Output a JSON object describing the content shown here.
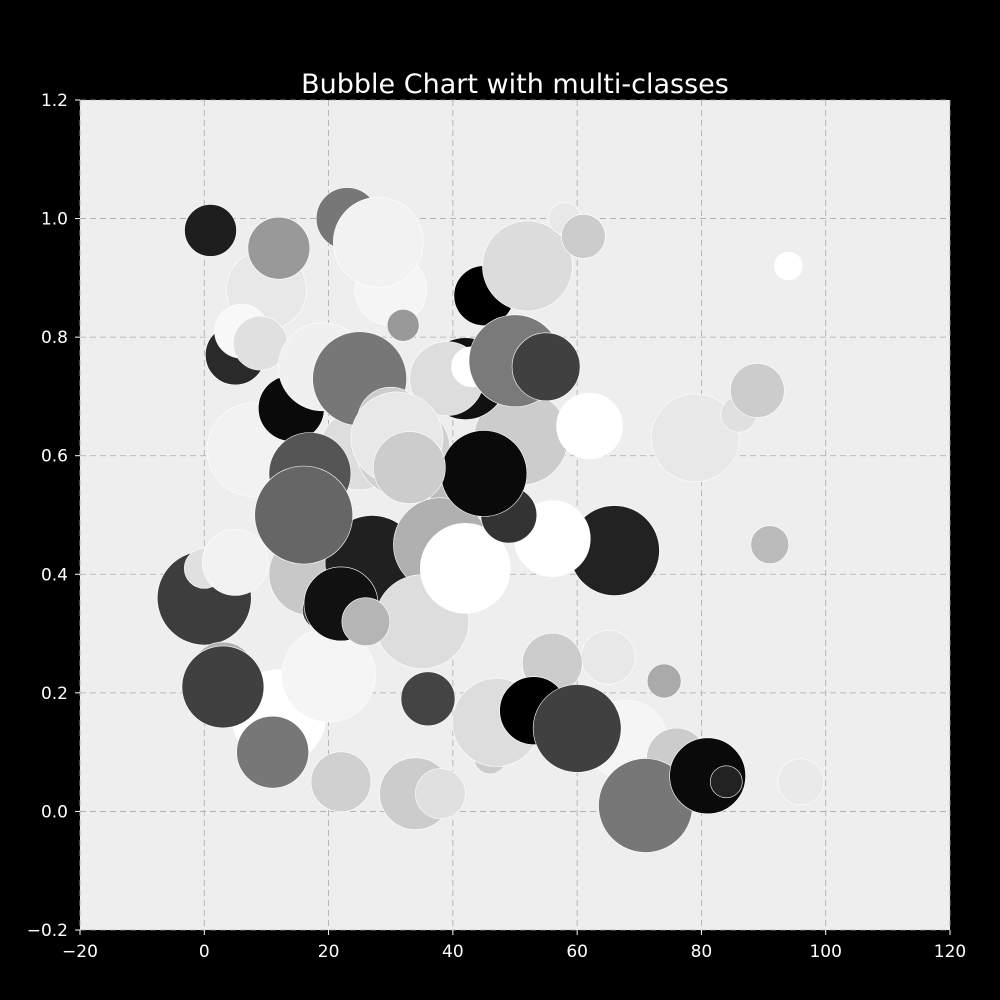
{
  "chart_data": {
    "type": "scatter",
    "title": "Bubble Chart with multi-classes",
    "xlabel": "",
    "ylabel": "",
    "xlim": [
      -20,
      120
    ],
    "ylim": [
      -0.2,
      1.2
    ],
    "x_ticks": [
      "−20",
      "0",
      "20",
      "40",
      "60",
      "80",
      "100",
      "120"
    ],
    "y_ticks": [
      "−0.2",
      "0.0",
      "0.2",
      "0.4",
      "0.6",
      "0.8",
      "1.0",
      "1.2"
    ],
    "grid": true,
    "legend": "none",
    "colors": {
      "figure_background": "#000000",
      "plot_background": "#eeeeee",
      "grid": "#aaaaaa",
      "text": "#ffffff"
    },
    "points": [
      {
        "x": 17,
        "y": 0.4,
        "size": 41,
        "color": "#c8c8c8"
      },
      {
        "x": 0,
        "y": 0.36,
        "size": 47,
        "color": "#3d3d3d"
      },
      {
        "x": 0,
        "y": 0.41,
        "size": 20,
        "color": "#e0e0e0"
      },
      {
        "x": 5,
        "y": 0.42,
        "size": 33,
        "color": "#f2f2f2"
      },
      {
        "x": 27,
        "y": 0.42,
        "size": 47,
        "color": "#202020"
      },
      {
        "x": 25,
        "y": 0.61,
        "size": 40,
        "color": "#dddddd"
      },
      {
        "x": 8,
        "y": 0.61,
        "size": 47,
        "color": "#f2f2f2"
      },
      {
        "x": 10,
        "y": 0.88,
        "size": 40,
        "color": "#e8e8e8"
      },
      {
        "x": 41,
        "y": 0.54,
        "size": 30,
        "color": "#bbbbbb"
      },
      {
        "x": 38,
        "y": 0.45,
        "size": 47,
        "color": "#b0b0b0"
      },
      {
        "x": 32,
        "y": 0.61,
        "size": 47,
        "color": "#d0d0d0"
      },
      {
        "x": 51,
        "y": 0.63,
        "size": 47,
        "color": "#cccccc"
      },
      {
        "x": 79,
        "y": 0.63,
        "size": 44,
        "color": "#e8e8e8"
      },
      {
        "x": 86,
        "y": 0.67,
        "size": 18,
        "color": "#e0e0e0"
      },
      {
        "x": 65,
        "y": 0.26,
        "size": 27,
        "color": "#e8e8e8"
      },
      {
        "x": 56,
        "y": 0.25,
        "size": 30,
        "color": "#cccccc"
      },
      {
        "x": 12,
        "y": 0.16,
        "size": 47,
        "color": "#ffffff"
      },
      {
        "x": 3,
        "y": 0.23,
        "size": 33,
        "color": "#b0b0b0"
      },
      {
        "x": 20,
        "y": 0.28,
        "size": 20,
        "color": "#888888"
      },
      {
        "x": 19,
        "y": 0.34,
        "size": 20,
        "color": "#404040"
      },
      {
        "x": 35,
        "y": 0.32,
        "size": 47,
        "color": "#dddddd"
      },
      {
        "x": 20,
        "y": 0.23,
        "size": 47,
        "color": "#f5f5f5"
      },
      {
        "x": 3,
        "y": 0.21,
        "size": 41,
        "color": "#404040"
      },
      {
        "x": 11,
        "y": 0.1,
        "size": 36,
        "color": "#777777"
      },
      {
        "x": 22,
        "y": 0.05,
        "size": 30,
        "color": "#d0d0d0"
      },
      {
        "x": 34,
        "y": 0.03,
        "size": 36,
        "color": "#cccccc"
      },
      {
        "x": 38,
        "y": 0.03,
        "size": 25,
        "color": "#e0e0e0"
      },
      {
        "x": 36,
        "y": 0.19,
        "size": 27,
        "color": "#444444"
      },
      {
        "x": 46,
        "y": 0.09,
        "size": 16,
        "color": "#cccccc"
      },
      {
        "x": 47,
        "y": 0.15,
        "size": 44,
        "color": "#dddddd"
      },
      {
        "x": 53,
        "y": 0.17,
        "size": 34,
        "color": "#000000"
      },
      {
        "x": 68,
        "y": 0.12,
        "size": 40,
        "color": "#f5f5f5"
      },
      {
        "x": 76,
        "y": 0.09,
        "size": 30,
        "color": "#cccccc"
      },
      {
        "x": 71,
        "y": 0.01,
        "size": 47,
        "color": "#777777"
      },
      {
        "x": 81,
        "y": 0.06,
        "size": 38,
        "color": "#0a0a0a"
      },
      {
        "x": 84,
        "y": 0.05,
        "size": 16,
        "color": "#222222"
      },
      {
        "x": 96,
        "y": 0.05,
        "size": 23,
        "color": "#eaeaea"
      },
      {
        "x": 74,
        "y": 0.22,
        "size": 17,
        "color": "#aaaaaa"
      },
      {
        "x": 60,
        "y": 0.14,
        "size": 44,
        "color": "#404040"
      },
      {
        "x": 91,
        "y": 0.45,
        "size": 19,
        "color": "#bbbbbb"
      },
      {
        "x": 89,
        "y": 0.71,
        "size": 27,
        "color": "#cccccc"
      },
      {
        "x": 94,
        "y": 0.92,
        "size": 14,
        "color": "#ffffff"
      },
      {
        "x": 62,
        "y": 0.65,
        "size": 33,
        "color": "#ffffff"
      },
      {
        "x": 66,
        "y": 0.44,
        "size": 45,
        "color": "#222222"
      },
      {
        "x": 56,
        "y": 0.46,
        "size": 38,
        "color": "#ffffff"
      },
      {
        "x": 42,
        "y": 0.41,
        "size": 45,
        "color": "#ffffff"
      },
      {
        "x": 49,
        "y": 0.5,
        "size": 28,
        "color": "#333333"
      },
      {
        "x": 45,
        "y": 0.57,
        "size": 43,
        "color": "#0a0a0a"
      },
      {
        "x": 42,
        "y": 0.73,
        "size": 41,
        "color": "#111111"
      },
      {
        "x": 39,
        "y": 0.73,
        "size": 37,
        "color": "#dddddd"
      },
      {
        "x": 43,
        "y": 0.75,
        "size": 20,
        "color": "#ffffff"
      },
      {
        "x": 45,
        "y": 0.87,
        "size": 30,
        "color": "#000000"
      },
      {
        "x": 50,
        "y": 0.76,
        "size": 46,
        "color": "#7a7a7a"
      },
      {
        "x": 55,
        "y": 0.75,
        "size": 34,
        "color": "#404040"
      },
      {
        "x": 52,
        "y": 0.92,
        "size": 45,
        "color": "#dcdcdc"
      },
      {
        "x": 58,
        "y": 1.0,
        "size": 16,
        "color": "#e8e8e8"
      },
      {
        "x": 61,
        "y": 0.97,
        "size": 22,
        "color": "#cccccc"
      },
      {
        "x": 23,
        "y": 1.0,
        "size": 31,
        "color": "#777777"
      },
      {
        "x": 30,
        "y": 0.88,
        "size": 36,
        "color": "#f5f5f5"
      },
      {
        "x": 28,
        "y": 0.96,
        "size": 45,
        "color": "#f2f2f2"
      },
      {
        "x": 12,
        "y": 0.95,
        "size": 31,
        "color": "#999999"
      },
      {
        "x": 1,
        "y": 0.98,
        "size": 26,
        "color": "#1e1e1e"
      },
      {
        "x": 32,
        "y": 0.82,
        "size": 16,
        "color": "#999999"
      },
      {
        "x": 5,
        "y": 0.77,
        "size": 30,
        "color": "#2a2a2a"
      },
      {
        "x": 6,
        "y": 0.81,
        "size": 27,
        "color": "#f8f8f8"
      },
      {
        "x": 9,
        "y": 0.79,
        "size": 27,
        "color": "#e0e0e0"
      },
      {
        "x": 14,
        "y": 0.68,
        "size": 33,
        "color": "#0a0a0a"
      },
      {
        "x": 19,
        "y": 0.75,
        "size": 44,
        "color": "#f0f0f0"
      },
      {
        "x": 25,
        "y": 0.73,
        "size": 47,
        "color": "#777777"
      },
      {
        "x": 30,
        "y": 0.66,
        "size": 33,
        "color": "#cccccc"
      },
      {
        "x": 31,
        "y": 0.63,
        "size": 46,
        "color": "#e8e8e8"
      },
      {
        "x": 33,
        "y": 0.58,
        "size": 36,
        "color": "#cccccc"
      },
      {
        "x": 17,
        "y": 0.57,
        "size": 41,
        "color": "#555555"
      },
      {
        "x": 16,
        "y": 0.5,
        "size": 49,
        "color": "#666666"
      },
      {
        "x": 22,
        "y": 0.35,
        "size": 37,
        "color": "#111111"
      },
      {
        "x": 26,
        "y": 0.32,
        "size": 24,
        "color": "#b5b5b5"
      }
    ]
  }
}
